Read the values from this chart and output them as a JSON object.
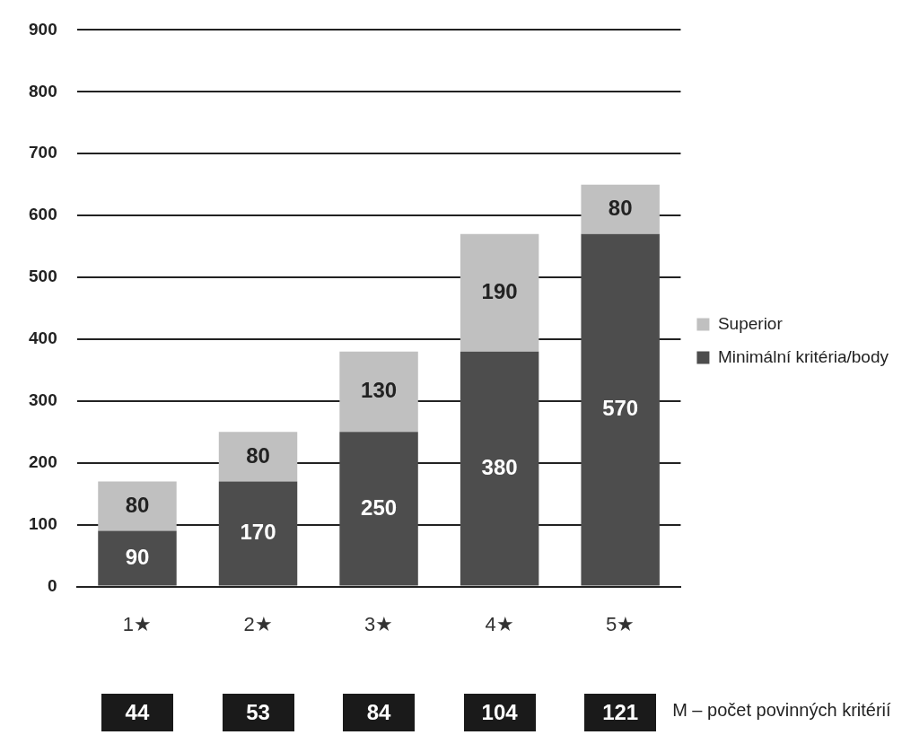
{
  "chart_data": {
    "type": "bar",
    "stacked": true,
    "categories": [
      "1★",
      "2★",
      "3★",
      "4★",
      "5★"
    ],
    "series": [
      {
        "name": "Minimální kritéria/body",
        "color": "#4d4d4d",
        "values": [
          90,
          170,
          250,
          380,
          570
        ]
      },
      {
        "name": "Superior",
        "color": "#c0c0c0",
        "values": [
          80,
          80,
          130,
          190,
          80
        ]
      }
    ],
    "ylim": [
      0,
      900
    ],
    "yticks": [
      0,
      100,
      200,
      300,
      400,
      500,
      600,
      700,
      800,
      900
    ],
    "grid": "y",
    "legend": "right",
    "data_labels": true,
    "annotations": [
      "44",
      "53",
      "84",
      "104",
      "121",
      "M – počet povinných kritérií"
    ]
  }
}
